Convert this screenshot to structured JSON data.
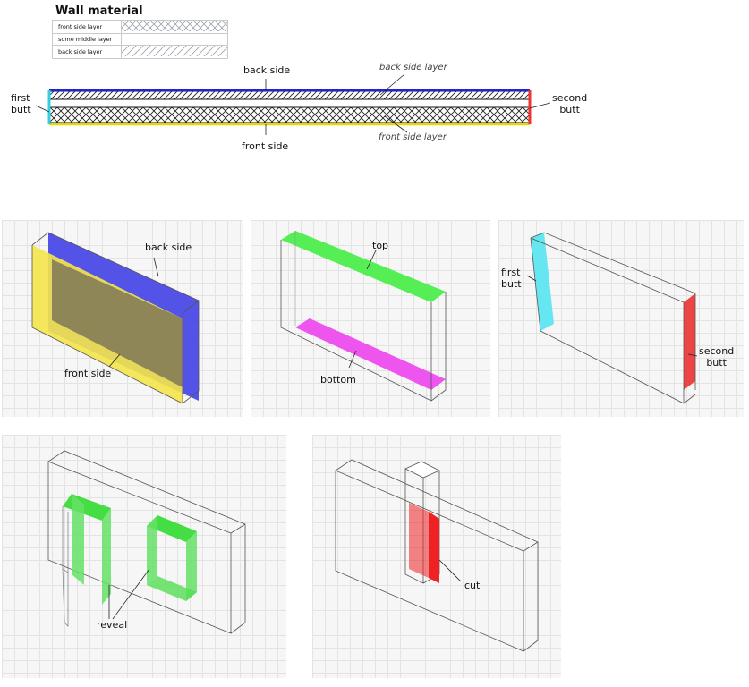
{
  "legend": {
    "title": "Wall material",
    "rows": [
      {
        "label": "front side layer",
        "pattern": "crosshatch"
      },
      {
        "label": "some middle layer",
        "pattern": "none"
      },
      {
        "label": "back side layer",
        "pattern": "diagonal"
      }
    ]
  },
  "section": {
    "back_side": "back side",
    "front_side": "front side",
    "first_butt": [
      "first",
      "butt"
    ],
    "second_butt": [
      "second",
      "butt"
    ],
    "back_side_layer": "back side layer",
    "front_side_layer": "front side layer"
  },
  "panels": {
    "sides": {
      "back_side": "back side",
      "front_side": "front side"
    },
    "topbottom": {
      "top": "top",
      "bottom": "bottom"
    },
    "butts": {
      "first_butt": [
        "first",
        "butt"
      ],
      "second_butt": [
        "second",
        "butt"
      ]
    },
    "reveal": {
      "label": "reveal"
    },
    "cut": {
      "label": "cut"
    }
  },
  "colors": {
    "back_side": "#4a4ae6",
    "front_side": "#f4e64a",
    "first_butt": "#66e6f0",
    "second_butt": "#ee4444",
    "top": "#55ee55",
    "bottom": "#ee55ee",
    "reveal": "#44dd44",
    "cut": "#ee2222"
  }
}
